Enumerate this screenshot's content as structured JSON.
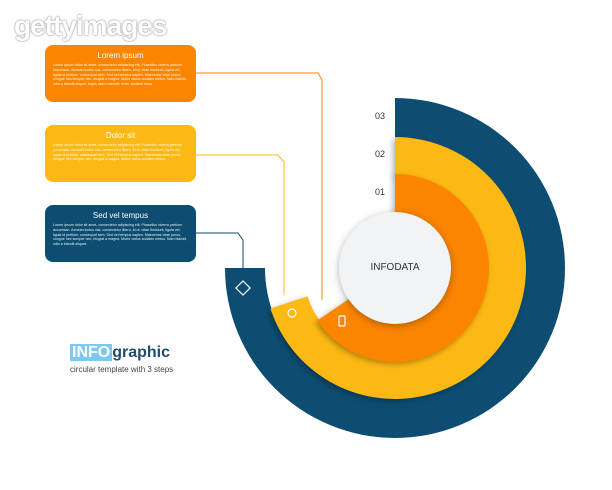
{
  "watermark": "gettyimages",
  "colors": {
    "orange": "#fc8500",
    "yellow": "#fdb913",
    "blue": "#0d4d72",
    "white": "#f1f4f6"
  },
  "boxes": [
    {
      "title": "Lorem ipsum",
      "text": "Lorem ipsum dolor sit amet, consectetur adipiscing elit. Phasellus viverra pretium accumsan. Aenean luctus nisi, consectetur libero, id ut, vitae tincidunt, ligula vel, ligula id pretium, consequat sem. Sed vel tempus sapien. Maecenas vitae purus, congue nec semper nec, feugiat a magna. Morbi varius sodales metus. Nam blandit, odio a blandit aliquet, turpis diam molestie enim, sodales risus.",
      "color": "#fc8500"
    },
    {
      "title": "Dolor sit",
      "text": "Lorem ipsum dolor sit amet, consectetur adipiscing elit. Phasellus viverra pretium accumsan. Aenean luctus nisi, consectetur libero, id ut, vitae tincidunt, ligula vel, ligula id pretium, consequat sem. Sed vel tempus sapien. Maecenas vitae purus, congue nec semper nec, feugiat a magna. Morbi varius sodales metus.",
      "color": "#fdb913"
    },
    {
      "title": "Sed vel tempus",
      "text": "Lorem ipsum dolor sit amet, consectetur adipiscing elit. Phasellus viverra pretium accumsan. Aenean luctus nisi, consectetur libero, id ut, vitae tincidunt, ligula vel, ligula id pretium, consequat sem. Sed vel tempus sapien. Maecenas vitae purus, congue nec semper nec, feugiat a magna. Morbi varius sodales metus. Nam blandit, odio a blandit aliquet.",
      "color": "#0d4d72"
    }
  ],
  "steps": [
    "01",
    "02",
    "03"
  ],
  "center_label": "INFODATA",
  "logo": {
    "info": "INFO",
    "graphic": "graphic",
    "subtitle": "circular template with 3 steps"
  },
  "icons": [
    "puzzle-icon",
    "lightbulb-icon",
    "mobile-icon"
  ]
}
